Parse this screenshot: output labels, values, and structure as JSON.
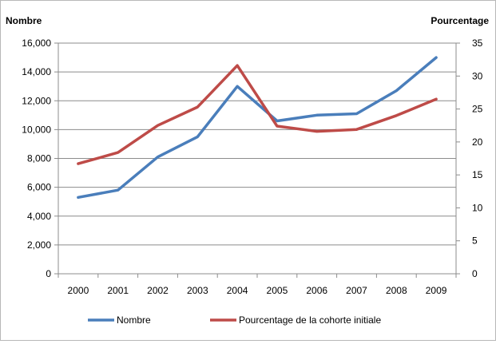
{
  "chart_data": {
    "type": "line",
    "title": "",
    "xlabel": "",
    "ylabel": "Nombre",
    "y2label": "Pourcentage",
    "categories": [
      "2000",
      "2001",
      "2002",
      "2003",
      "2004",
      "2005",
      "2006",
      "2007",
      "2008",
      "2009"
    ],
    "ylim": [
      0,
      16000
    ],
    "yticks": [
      0,
      2000,
      4000,
      6000,
      8000,
      10000,
      12000,
      14000,
      16000
    ],
    "ytick_labels": [
      "0",
      "2,000",
      "4,000",
      "6,000",
      "8,000",
      "10,000",
      "12,000",
      "14,000",
      "16,000"
    ],
    "y2lim": [
      0,
      35
    ],
    "y2ticks": [
      0,
      5,
      10,
      15,
      20,
      25,
      30,
      35
    ],
    "y2tick_labels": [
      "0",
      "5",
      "10",
      "15",
      "20",
      "25",
      "30",
      "35"
    ],
    "grid": true,
    "legend_position": "bottom",
    "series": [
      {
        "name": "Nombre",
        "axis": "left",
        "color": "#4a7ebb",
        "values": [
          5300,
          5800,
          8100,
          9500,
          13000,
          10600,
          11000,
          11100,
          12700,
          15000
        ]
      },
      {
        "name": "Pourcentage de la cohorte initiale",
        "axis": "right",
        "color": "#be4b48",
        "values": [
          16.7,
          18.4,
          22.5,
          25.3,
          31.6,
          22.4,
          21.6,
          21.9,
          24.0,
          26.5
        ]
      }
    ]
  }
}
